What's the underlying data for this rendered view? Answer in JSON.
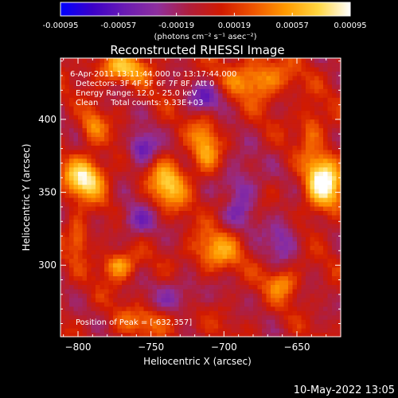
{
  "colorbar": {
    "tick_labels": [
      "-0.00095",
      "-0.00057",
      "-0.00019",
      "0.00019",
      "0.00057",
      "0.00095"
    ],
    "unit_label": "(photons cm⁻² s⁻¹ asec⁻²)",
    "range": [
      -0.00095,
      0.00095
    ],
    "colormap": [
      "#0000ff",
      "#3c00c8",
      "#6a1bb3",
      "#8e2f9e",
      "#b01e3c",
      "#d11a00",
      "#ef5500",
      "#ff9a00",
      "#ffd640",
      "#ffffff"
    ]
  },
  "chart_data": {
    "type": "heatmap",
    "title": "Reconstructed RHESSI Image",
    "xlabel": "Heliocentric X (arcsec)",
    "ylabel": "Heliocentric Y (arcsec)",
    "xlim": [
      -812,
      -620
    ],
    "ylim": [
      251,
      442
    ],
    "x_ticks": [
      -800,
      -750,
      -700,
      -650
    ],
    "y_ticks": [
      300,
      350,
      400
    ],
    "x_tick_labels": [
      "−800",
      "−750",
      "−700",
      "−650"
    ],
    "y_tick_labels": [
      "300",
      "350",
      "400"
    ],
    "info_lines": [
      "6-Apr-2011 13:11:44.000 to 13:17:44.000",
      "Detectors: 3F 4F 5F 6F 7F 8F, Att 0",
      "Energy Range: 12.0 - 25.0 keV",
      "Clean     Total counts: 9.33E+03"
    ],
    "peak_label": "Position of Peak = [-632,357]",
    "peak": [
      -632,
      357
    ],
    "sources": [
      {
        "x": -632,
        "y": 357,
        "sx": 9,
        "sy": 14,
        "amp": 0.00095
      },
      {
        "x": -795,
        "y": 360,
        "sx": 10,
        "sy": 10,
        "amp": 0.00085
      },
      {
        "x": -738,
        "y": 356,
        "sx": 9,
        "sy": 12,
        "amp": 0.00066
      },
      {
        "x": -713,
        "y": 382,
        "sx": 7,
        "sy": 14,
        "amp": 0.00052
      },
      {
        "x": -772,
        "y": 300,
        "sx": 8,
        "sy": 7,
        "amp": 0.00062
      },
      {
        "x": -706,
        "y": 310,
        "sx": 12,
        "sy": 10,
        "amp": 0.00055
      },
      {
        "x": -676,
        "y": 428,
        "sx": 15,
        "sy": 10,
        "amp": 0.00058
      },
      {
        "x": -770,
        "y": 435,
        "sx": 14,
        "sy": 7,
        "amp": 0.0006
      },
      {
        "x": -790,
        "y": 395,
        "sx": 6,
        "sy": 8,
        "amp": 0.00042
      },
      {
        "x": -800,
        "y": 320,
        "sx": 5,
        "sy": 10,
        "amp": 0.00045
      },
      {
        "x": -660,
        "y": 288,
        "sx": 8,
        "sy": 8,
        "amp": 0.00047
      },
      {
        "x": -748,
        "y": 262,
        "sx": 18,
        "sy": 7,
        "amp": 0.00035
      },
      {
        "x": -640,
        "y": 395,
        "sx": 6,
        "sy": 10,
        "amp": 0.0004
      },
      {
        "x": -700,
        "y": 345,
        "sx": 6,
        "sy": 6,
        "amp": 0.0003
      },
      {
        "x": -756,
        "y": 380,
        "sx": 7,
        "sy": 8,
        "amp": -0.0006
      },
      {
        "x": -712,
        "y": 415,
        "sx": 8,
        "sy": 7,
        "amp": -0.0005
      },
      {
        "x": -690,
        "y": 350,
        "sx": 10,
        "sy": 16,
        "amp": -0.00045
      },
      {
        "x": -760,
        "y": 330,
        "sx": 10,
        "sy": 8,
        "amp": -0.0004
      },
      {
        "x": -730,
        "y": 280,
        "sx": 12,
        "sy": 10,
        "amp": -0.00035
      },
      {
        "x": -660,
        "y": 320,
        "sx": 8,
        "sy": 12,
        "amp": -0.0004
      }
    ]
  },
  "footer": {
    "timestamp": "10-May-2022 13:05"
  }
}
